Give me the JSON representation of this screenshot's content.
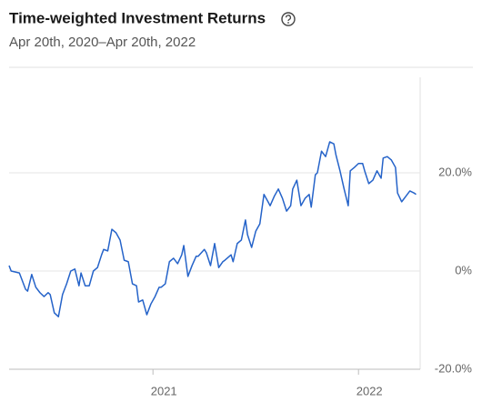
{
  "chart_data": {
    "type": "line",
    "title": "Time-weighted Investment Returns",
    "subtitle": "Apr 20th, 2020–Apr 20th, 2022",
    "xlim": [
      2020.3,
      2022.3
    ],
    "xticks": [
      2021,
      2022
    ],
    "ylim": [
      -20,
      40
    ],
    "yticks": [
      {
        "value": 20,
        "label": "20.0%"
      },
      {
        "value": 0,
        "label": "0%"
      },
      {
        "value": -20,
        "label": "-20.0%"
      }
    ],
    "grid": true,
    "series": [
      {
        "color": "#2563c9",
        "x": [
          2020.3,
          2020.31,
          2020.35,
          2020.38,
          2020.39,
          2020.41,
          2020.43,
          2020.45,
          2020.47,
          2020.49,
          2020.5,
          2020.52,
          2020.54,
          2020.56,
          2020.58,
          2020.6,
          2020.62,
          2020.64,
          2020.65,
          2020.67,
          2020.69,
          2020.71,
          2020.73,
          2020.75,
          2020.76,
          2020.78,
          2020.8,
          2020.82,
          2020.84,
          2020.86,
          2020.88,
          2020.9,
          2020.92,
          2020.93,
          2020.95,
          2020.97,
          2020.99,
          2021.01,
          2021.03,
          2021.04,
          2021.06,
          2021.08,
          2021.1,
          2021.12,
          2021.14,
          2021.15,
          2021.17,
          2021.19,
          2021.21,
          2021.22,
          2021.25,
          2021.26,
          2021.28,
          2021.3,
          2021.32,
          2021.34,
          2021.35,
          2021.38,
          2021.39,
          2021.41,
          2021.43,
          2021.45,
          2021.46,
          2021.48,
          2021.5,
          2021.52,
          2021.54,
          2021.56,
          2021.57,
          2021.59,
          2021.61,
          2021.63,
          2021.65,
          2021.67,
          2021.68,
          2021.7,
          2021.72,
          2021.74,
          2021.76,
          2021.77,
          2021.79,
          2021.8,
          2021.82,
          2021.84,
          2021.86,
          2021.88,
          2021.89,
          2021.91,
          2021.93,
          2021.95,
          2021.96,
          2021.98,
          2022.0,
          2022.02,
          2022.03,
          2022.05,
          2022.07,
          2022.09,
          2022.11,
          2022.12,
          2022.14,
          2022.16,
          2022.18,
          2022.19,
          2022.21,
          2022.23,
          2022.25,
          2022.27,
          2022.28
        ],
        "values": [
          1.1,
          0,
          -0.4,
          -3.7,
          -4.1,
          -0.7,
          -3.3,
          -4.4,
          -5.2,
          -4.4,
          -4.8,
          -8.5,
          -9.3,
          -4.8,
          -2.6,
          0,
          0.4,
          -3.0,
          -0.4,
          -3.0,
          -3.0,
          0,
          0.7,
          3.3,
          4.4,
          4.1,
          8.5,
          7.8,
          6.3,
          2.2,
          1.9,
          -2.6,
          -3.0,
          -6.3,
          -5.9,
          -8.9,
          -6.7,
          -5.2,
          -3.3,
          -3.3,
          -2.6,
          1.9,
          2.6,
          1.5,
          3.3,
          5.2,
          -1.1,
          1.1,
          3.0,
          3.0,
          4.4,
          3.7,
          1.1,
          5.6,
          0.7,
          1.9,
          2.2,
          3.3,
          1.9,
          5.6,
          6.3,
          10.4,
          7.4,
          4.8,
          8.1,
          9.6,
          15.6,
          14.1,
          13.3,
          15.2,
          16.7,
          14.8,
          12.2,
          13.3,
          16.7,
          18.5,
          13.3,
          14.8,
          15.6,
          13.0,
          19.6,
          20.0,
          24.4,
          23.3,
          26.3,
          25.9,
          23.7,
          20.4,
          16.7,
          13.3,
          20.4,
          21.1,
          21.9,
          21.9,
          20.4,
          17.8,
          18.5,
          20.4,
          18.9,
          23.0,
          23.3,
          22.6,
          21.1,
          15.9,
          14.1,
          15.2,
          16.3,
          15.9,
          15.6
        ]
      }
    ]
  }
}
